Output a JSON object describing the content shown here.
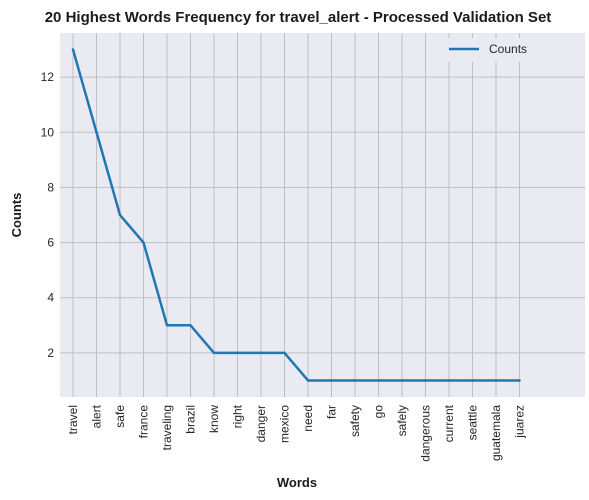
{
  "chart_data": {
    "type": "line",
    "title": "20 Highest Words Frequency for travel_alert - Processed Validation Set",
    "xlabel": "Words",
    "ylabel": "Counts",
    "categories": [
      "travel",
      "alert",
      "safe",
      "france",
      "traveling",
      "brazil",
      "know",
      "right",
      "danger",
      "mexico",
      "need",
      "far",
      "safety",
      "go",
      "safely",
      "dangerous",
      "current",
      "seattle",
      "guatemala",
      "juarez"
    ],
    "series": [
      {
        "name": "Counts",
        "values": [
          13,
          10,
          7,
          6,
          3,
          3,
          2,
          2,
          2,
          2,
          1,
          1,
          1,
          1,
          1,
          1,
          1,
          1,
          1,
          1
        ]
      }
    ],
    "ylim": [
      0.4,
      13.6
    ],
    "yticks": [
      2,
      4,
      6,
      8,
      10,
      12
    ],
    "grid": true,
    "legend_position": "top-right",
    "colors": {
      "line": "#1f77b4",
      "plot_background": "#eaeaf2",
      "grid": "#c0c0c0"
    }
  }
}
